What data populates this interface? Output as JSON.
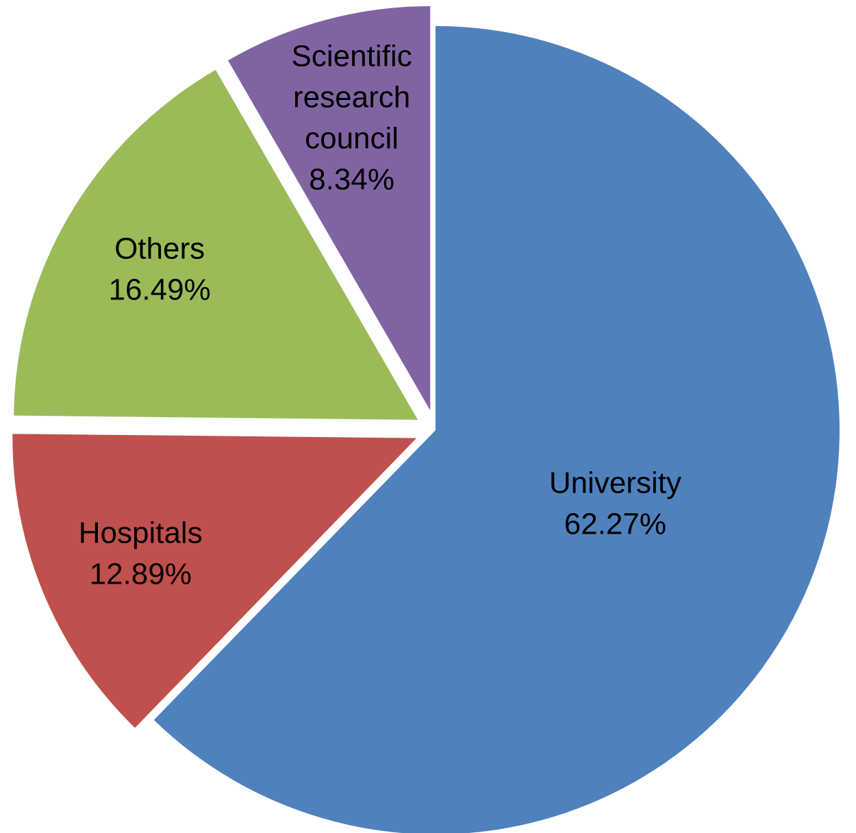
{
  "chart_data": {
    "type": "pie",
    "title": "",
    "slices": [
      {
        "label_lines": [
          "University"
        ],
        "value": 62.27,
        "value_label": "62.27%",
        "color": "#4F81BD"
      },
      {
        "label_lines": [
          "Hospitals"
        ],
        "value": 12.89,
        "value_label": "12.89%",
        "color": "#C0504D"
      },
      {
        "label_lines": [
          "Others"
        ],
        "value": 16.49,
        "value_label": "16.49%",
        "color": "#9BBB59"
      },
      {
        "label_lines": [
          "Scientific",
          "research",
          "council"
        ],
        "value": 8.34,
        "value_label": "8.34%",
        "color": "#8064A2"
      }
    ],
    "start_angle": "12 o'clock",
    "direction": "clockwise",
    "exploded": true,
    "legend": "none"
  }
}
